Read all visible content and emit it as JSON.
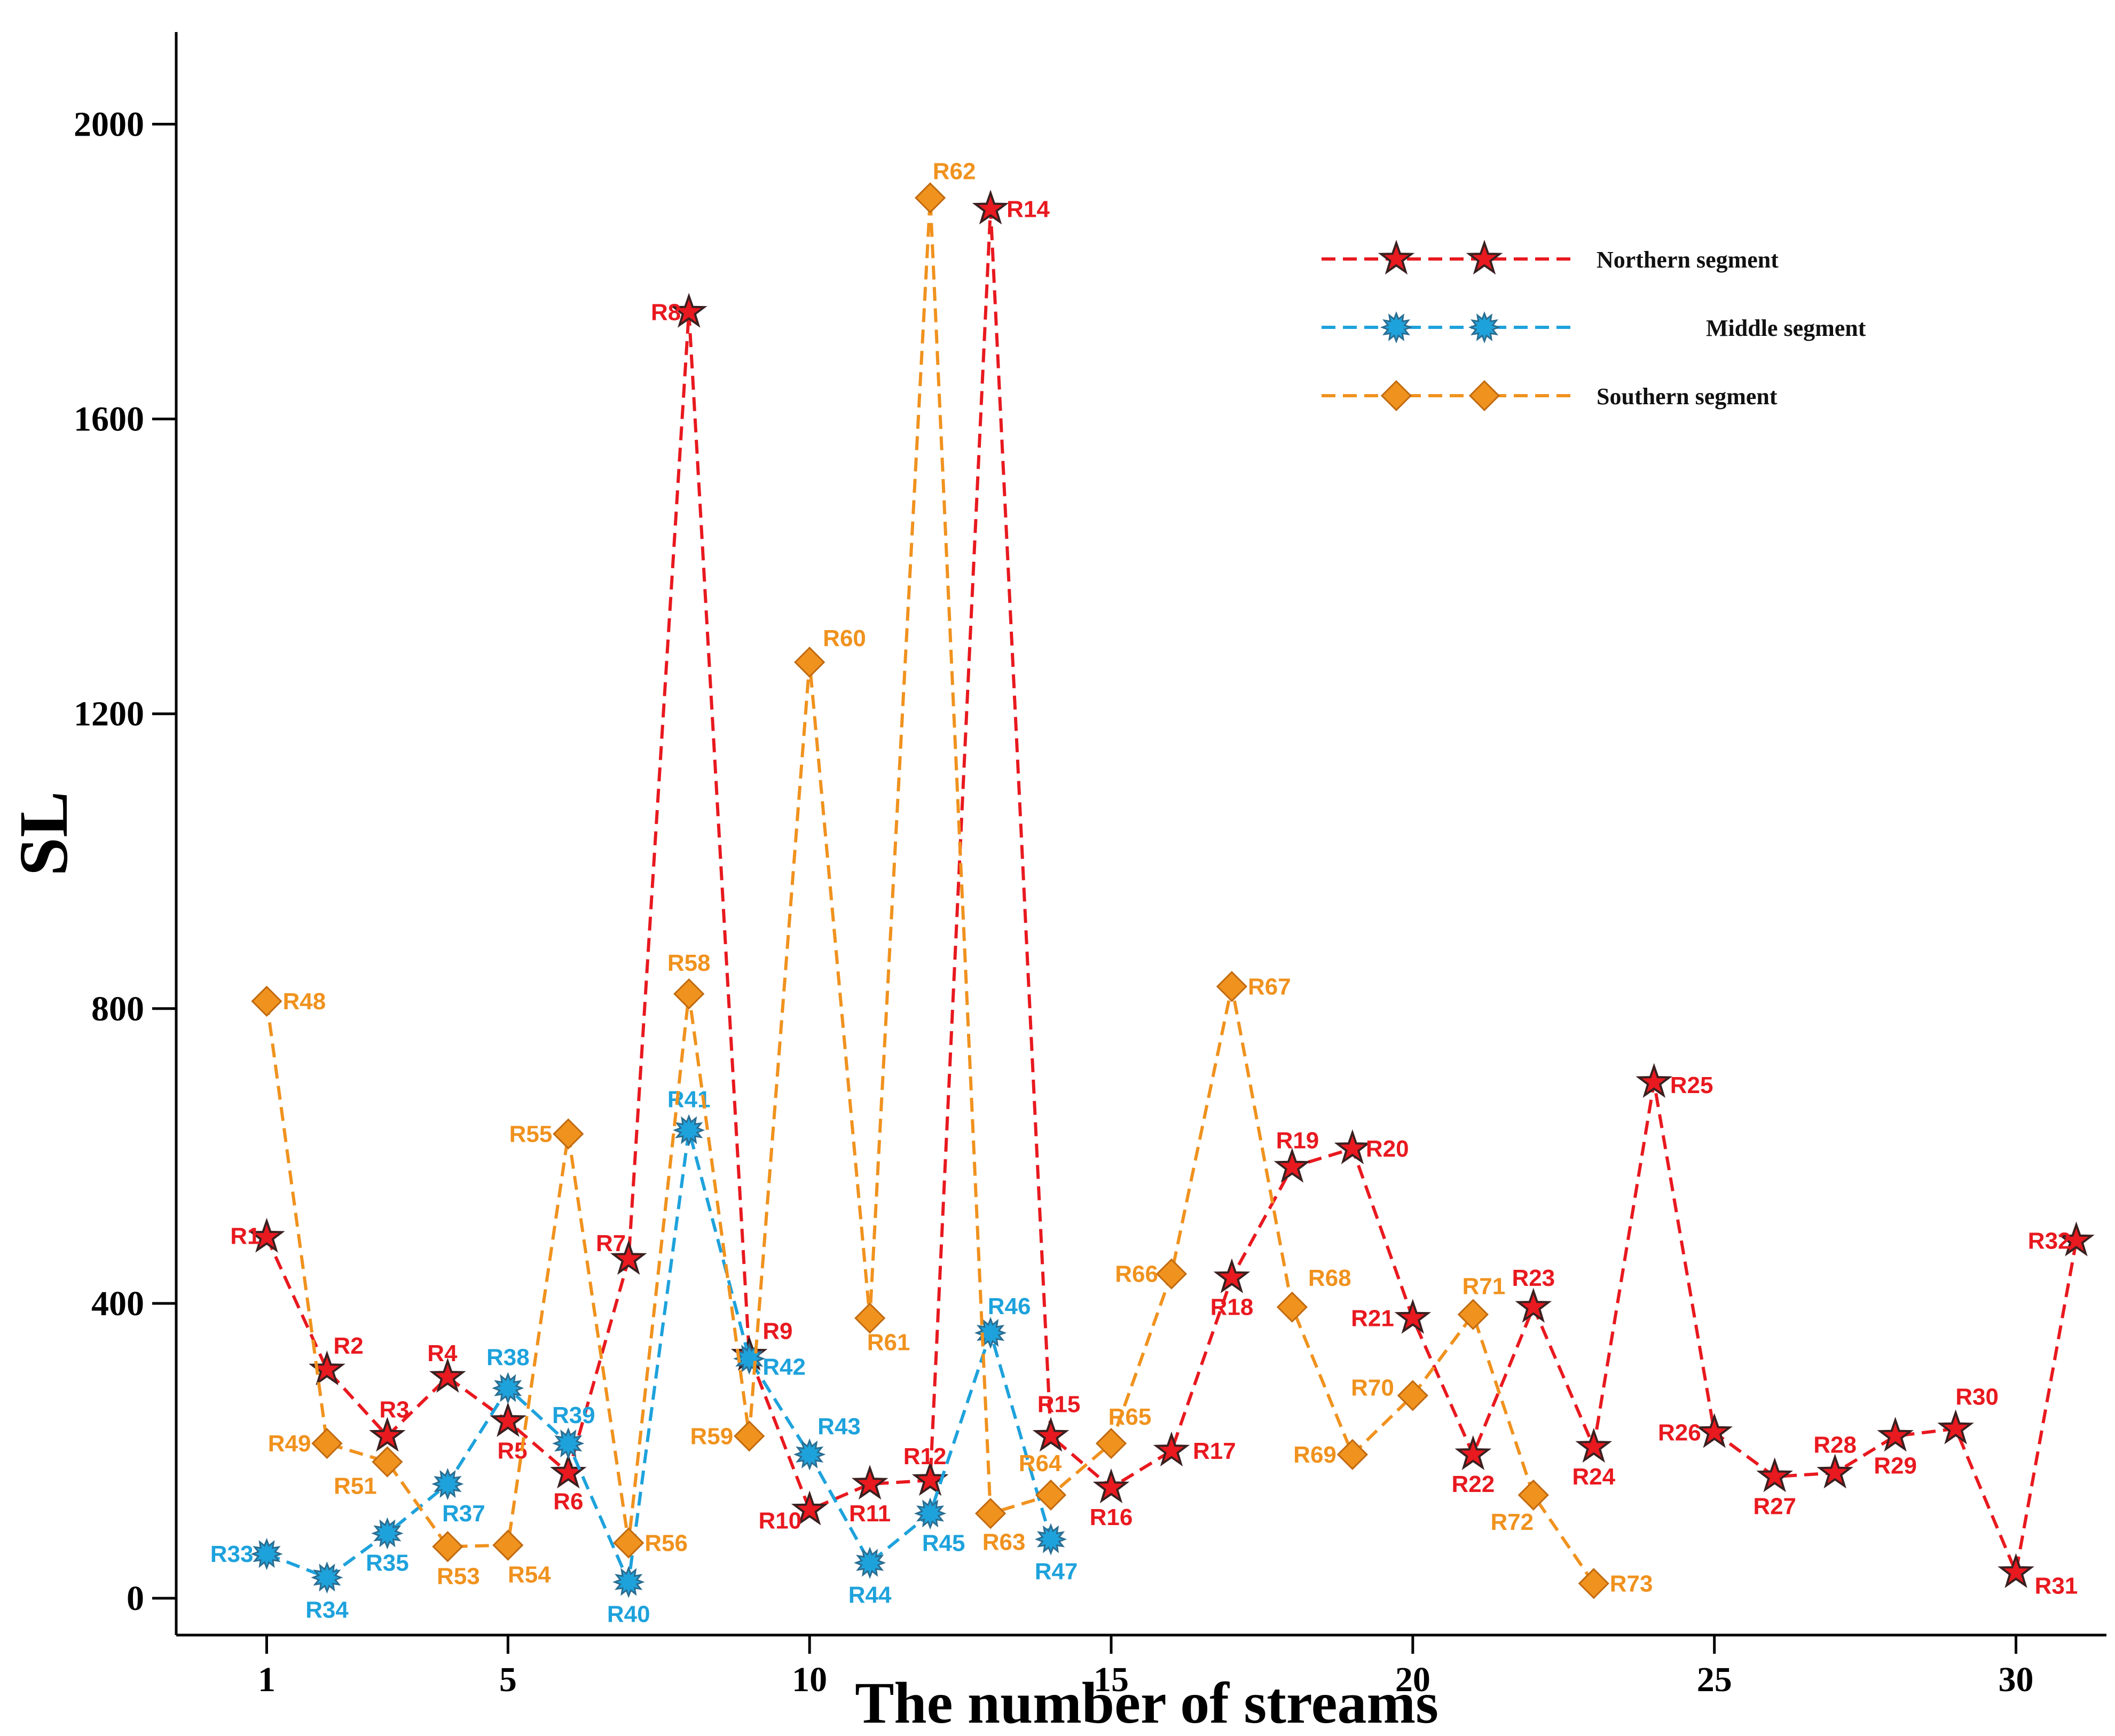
{
  "chart_data": {
    "type": "line",
    "xlabel": "The number of streams",
    "ylabel": "SL",
    "xlim": [
      -0.5,
      31.5
    ],
    "ylim": [
      -50,
      2125
    ],
    "xticks": [
      1,
      5,
      10,
      15,
      20,
      25,
      30
    ],
    "yticks": [
      0,
      400,
      800,
      1200,
      1600,
      2000
    ],
    "grid": false,
    "legend_position": "top-right",
    "series": [
      {
        "name": "Northern segment",
        "color": "#e8191f",
        "marker": "star",
        "points": [
          {
            "x": 1,
            "y": 490,
            "label": "R1"
          },
          {
            "x": 2,
            "y": 310,
            "label": "R2"
          },
          {
            "x": 3,
            "y": 220,
            "label": "R3"
          },
          {
            "x": 4,
            "y": 300,
            "label": "R4"
          },
          {
            "x": 5,
            "y": 240,
            "label": "R5"
          },
          {
            "x": 6,
            "y": 170,
            "label": "R6"
          },
          {
            "x": 7,
            "y": 460,
            "label": "R7"
          },
          {
            "x": 8,
            "y": 1745,
            "label": "R8"
          },
          {
            "x": 9,
            "y": 330,
            "label": "R9"
          },
          {
            "x": 10,
            "y": 120,
            "label": "R10"
          },
          {
            "x": 11,
            "y": 155,
            "label": "R11"
          },
          {
            "x": 12,
            "y": 160,
            "label": "R12"
          },
          {
            "x": 13,
            "y": 1885,
            "label": "R14"
          },
          {
            "x": 14,
            "y": 220,
            "label": "R15"
          },
          {
            "x": 15,
            "y": 150,
            "label": "R16"
          },
          {
            "x": 16,
            "y": 200,
            "label": "R17"
          },
          {
            "x": 17,
            "y": 435,
            "label": "R18"
          },
          {
            "x": 18,
            "y": 585,
            "label": "R19"
          },
          {
            "x": 19,
            "y": 610,
            "label": "R20"
          },
          {
            "x": 20,
            "y": 380,
            "label": "R21"
          },
          {
            "x": 21,
            "y": 195,
            "label": "R22"
          },
          {
            "x": 22,
            "y": 395,
            "label": "R23"
          },
          {
            "x": 23,
            "y": 205,
            "label": "R24"
          },
          {
            "x": 24,
            "y": 700,
            "label": "R25"
          },
          {
            "x": 25,
            "y": 225,
            "label": "R26"
          },
          {
            "x": 26,
            "y": 165,
            "label": "R27"
          },
          {
            "x": 27,
            "y": 170,
            "label": "R28"
          },
          {
            "x": 28,
            "y": 220,
            "label": "R29"
          },
          {
            "x": 29,
            "y": 230,
            "label": "R30"
          },
          {
            "x": 30,
            "y": 35,
            "label": "R31"
          },
          {
            "x": 31,
            "y": 485,
            "label": "R32"
          }
        ]
      },
      {
        "name": "Middle segment",
        "color": "#1ea2dc",
        "marker": "sunburst",
        "points": [
          {
            "x": 1,
            "y": 60,
            "label": "R33"
          },
          {
            "x": 2,
            "y": 28,
            "label": "R34"
          },
          {
            "x": 3,
            "y": 88,
            "label": "R35"
          },
          {
            "x": 4,
            "y": 155,
            "label": "R37"
          },
          {
            "x": 5,
            "y": 285,
            "label": "R38"
          },
          {
            "x": 6,
            "y": 210,
            "label": "R39"
          },
          {
            "x": 7,
            "y": 22,
            "label": "R40"
          },
          {
            "x": 8,
            "y": 635,
            "label": "R41"
          },
          {
            "x": 9,
            "y": 325,
            "label": "R42"
          },
          {
            "x": 10,
            "y": 195,
            "label": "R43"
          },
          {
            "x": 11,
            "y": 48,
            "label": "R44"
          },
          {
            "x": 12,
            "y": 115,
            "label": "R45"
          },
          {
            "x": 13,
            "y": 360,
            "label": "R46"
          },
          {
            "x": 14,
            "y": 80,
            "label": "R47"
          }
        ]
      },
      {
        "name": "Southern segment",
        "color": "#f0921e",
        "marker": "diamond",
        "points": [
          {
            "x": 1,
            "y": 810,
            "label": "R48"
          },
          {
            "x": 2,
            "y": 210,
            "label": "R49"
          },
          {
            "x": 3,
            "y": 185,
            "label": "R51"
          },
          {
            "x": 4,
            "y": 70,
            "label": "R53"
          },
          {
            "x": 5,
            "y": 72,
            "label": "R54"
          },
          {
            "x": 6,
            "y": 630,
            "label": "R55"
          },
          {
            "x": 7,
            "y": 75,
            "label": "R56"
          },
          {
            "x": 8,
            "y": 820,
            "label": "R58"
          },
          {
            "x": 9,
            "y": 220,
            "label": "R59"
          },
          {
            "x": 10,
            "y": 1270,
            "label": "R60"
          },
          {
            "x": 11,
            "y": 380,
            "label": "R61"
          },
          {
            "x": 12,
            "y": 1900,
            "label": "R62"
          },
          {
            "x": 13,
            "y": 115,
            "label": "R63"
          },
          {
            "x": 14,
            "y": 140,
            "label": "R64"
          },
          {
            "x": 15,
            "y": 210,
            "label": "R65"
          },
          {
            "x": 16,
            "y": 440,
            "label": "R66"
          },
          {
            "x": 17,
            "y": 830,
            "label": "R67"
          },
          {
            "x": 18,
            "y": 395,
            "label": "R68"
          },
          {
            "x": 19,
            "y": 195,
            "label": "R69"
          },
          {
            "x": 20,
            "y": 275,
            "label": "R70"
          },
          {
            "x": 21,
            "y": 385,
            "label": "R71"
          },
          {
            "x": 22,
            "y": 140,
            "label": "R72"
          },
          {
            "x": 23,
            "y": 20,
            "label": "R73"
          }
        ]
      }
    ]
  }
}
